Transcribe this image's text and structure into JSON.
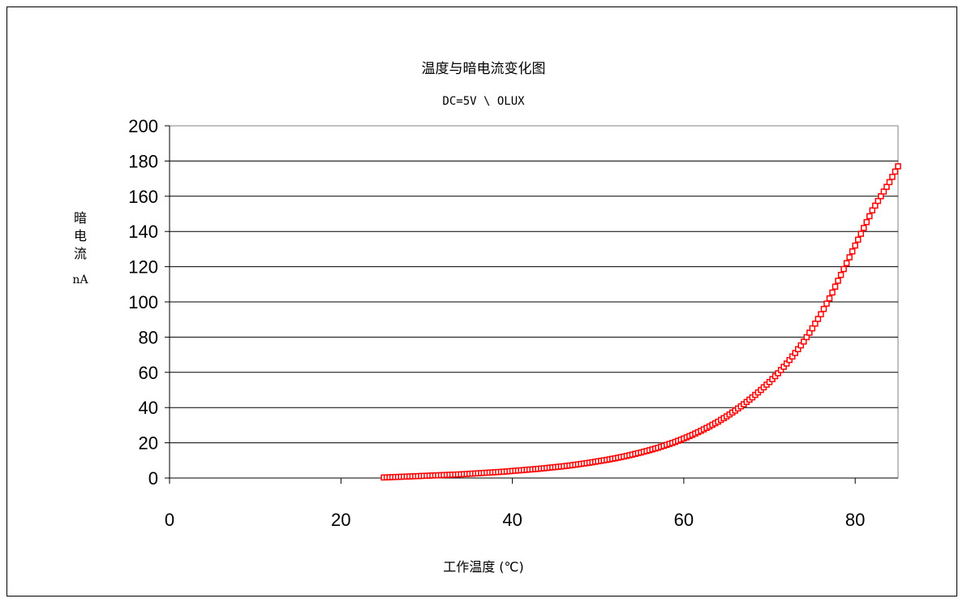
{
  "chart_data": {
    "type": "line",
    "title": "温度与暗电流变化图",
    "subtitle": "DC=5V \\ OLUX",
    "xlabel": "工作温度 (℃)",
    "ylabel": "暗电流",
    "yunit": "nA",
    "xlim": [
      0,
      85
    ],
    "ylim": [
      0,
      200
    ],
    "xticks": [
      0,
      20,
      40,
      60,
      80
    ],
    "yticks": [
      0,
      20,
      40,
      60,
      80,
      100,
      120,
      140,
      160,
      180,
      200
    ],
    "grid": "horizontal",
    "legend": "none",
    "series": [
      {
        "color": "#ff0000",
        "marker": "square",
        "x": [
          25,
          26,
          27,
          28,
          29,
          30,
          31,
          32,
          33,
          34,
          35,
          36,
          37,
          38,
          39,
          40,
          41,
          42,
          43,
          44,
          45,
          46,
          47,
          48,
          49,
          50,
          51,
          52,
          53,
          54,
          55,
          56,
          57,
          58,
          59,
          60,
          61,
          62,
          63,
          64,
          65,
          66,
          67,
          68,
          69,
          70,
          71,
          72,
          73,
          74,
          75,
          76,
          77,
          78,
          79,
          80,
          81,
          82,
          83,
          84,
          85
        ],
        "y": [
          0.3,
          0.5,
          0.7,
          0.9,
          1.1,
          1.3,
          1.5,
          1.7,
          1.9,
          2.1,
          2.4,
          2.7,
          3.0,
          3.3,
          3.6,
          4.0,
          4.4,
          4.8,
          5.2,
          5.7,
          6.2,
          6.7,
          7.3,
          8.0,
          8.7,
          9.5,
          10.3,
          11.2,
          12.2,
          13.3,
          14.5,
          15.8,
          17.2,
          18.8,
          20.5,
          22.4,
          24.5,
          26.8,
          29.3,
          32.0,
          35.0,
          38.3,
          41.9,
          45.8,
          50.0,
          54.5,
          59.5,
          65.0,
          71.0,
          77.5,
          85.0,
          93.0,
          102.0,
          112.0,
          122.0,
          132.0,
          142.0,
          152.0,
          160.0,
          168.0,
          177.0
        ]
      }
    ]
  }
}
